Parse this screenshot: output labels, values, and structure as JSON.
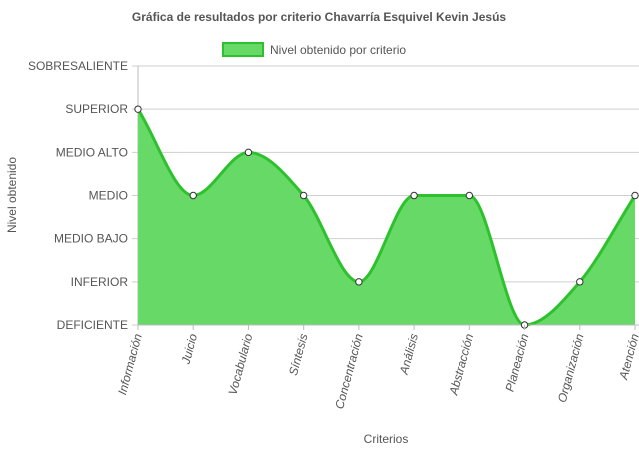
{
  "chart_data": {
    "type": "area",
    "title": "Gráfica de resultados por criterio Chavarría Esquivel Kevin Jesús",
    "xlabel": "Criterios",
    "ylabel": "Nivel obtenido",
    "levels": [
      "DEFICIENTE",
      "INFERIOR",
      "MEDIO BAJO",
      "MEDIO",
      "MEDIO ALTO",
      "SUPERIOR",
      "SOBRESALIENTE"
    ],
    "categories": [
      "Información",
      "Juicio",
      "Vocabulario",
      "Síntesis",
      "Concentración",
      "Análisis",
      "Abstracción",
      "Planeación",
      "Organización",
      "Atención"
    ],
    "series": [
      {
        "name": "Nivel obtenido por criterio",
        "values": [
          "SUPERIOR",
          "MEDIO",
          "MEDIO ALTO",
          "MEDIO",
          "INFERIOR",
          "MEDIO",
          "MEDIO",
          "DEFICIENTE",
          "INFERIOR",
          "MEDIO"
        ],
        "fill_color": "#66d966",
        "line_color": "#2ec12e"
      }
    ],
    "legend_position": "top-center",
    "grid": true
  }
}
